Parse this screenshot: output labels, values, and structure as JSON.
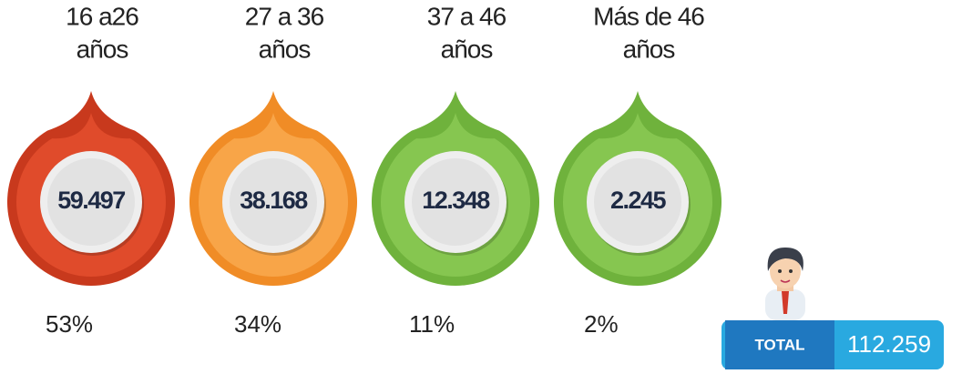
{
  "groups": [
    {
      "label": [
        "16 a26",
        "años"
      ],
      "value": "59.497",
      "percent": "53%",
      "color": "#e04b2b",
      "dark": "#c8391d"
    },
    {
      "label": [
        "27 a 36",
        "años"
      ],
      "value": "38.168",
      "percent": "34%",
      "color": "#f8a548",
      "dark": "#f08c26"
    },
    {
      "label": [
        "37 a 46",
        "años"
      ],
      "value": "12.348",
      "percent": "11%",
      "color": "#86c650",
      "dark": "#6fb23c"
    },
    {
      "label": [
        "Más de 46",
        "años"
      ],
      "value": "2.245",
      "percent": "2%",
      "color": "#86c650",
      "dark": "#6fb23c"
    }
  ],
  "total": {
    "label": "TOTAL",
    "value": "112.259"
  }
}
